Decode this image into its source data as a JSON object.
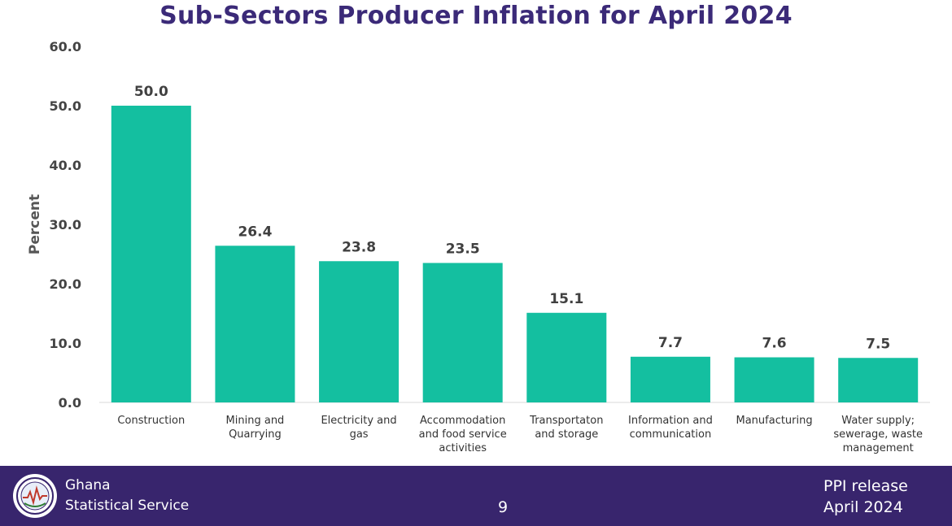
{
  "chart_data": {
    "type": "bar",
    "title": "Sub-Sectors Producer Inflation for April 2024",
    "ylabel": "Percent",
    "xlabel": "",
    "ylim": [
      0,
      60
    ],
    "yticks": [
      "0.0",
      "10.0",
      "20.0",
      "30.0",
      "40.0",
      "50.0",
      "60.0"
    ],
    "categories": [
      [
        "Construction"
      ],
      [
        "Mining and",
        "Quarrying"
      ],
      [
        "Electricity and",
        "gas"
      ],
      [
        "Accommodation",
        "and food service",
        "activities"
      ],
      [
        "Transportaton",
        "and storage"
      ],
      [
        "Information and",
        "communication"
      ],
      [
        "Manufacturing"
      ],
      [
        "Water supply;",
        "sewerage, waste",
        "management"
      ]
    ],
    "values": [
      50.0,
      26.4,
      23.8,
      23.5,
      15.1,
      7.7,
      7.6,
      7.5
    ],
    "data_labels": [
      "50.0",
      "26.4",
      "23.8",
      "23.5",
      "15.1",
      "7.7",
      "7.6",
      "7.5"
    ],
    "grid": false,
    "legend": "none",
    "bar_color": "#14bfa0"
  },
  "footer": {
    "org_line1": "Ghana",
    "org_line2": "Statistical Service",
    "page_number": "9",
    "release_line1": "PPI release",
    "release_line2": "April 2024",
    "logo_icon": "gss-seal-icon"
  },
  "colors": {
    "title": "#3b2a78",
    "footer_bg": "#38256d"
  }
}
